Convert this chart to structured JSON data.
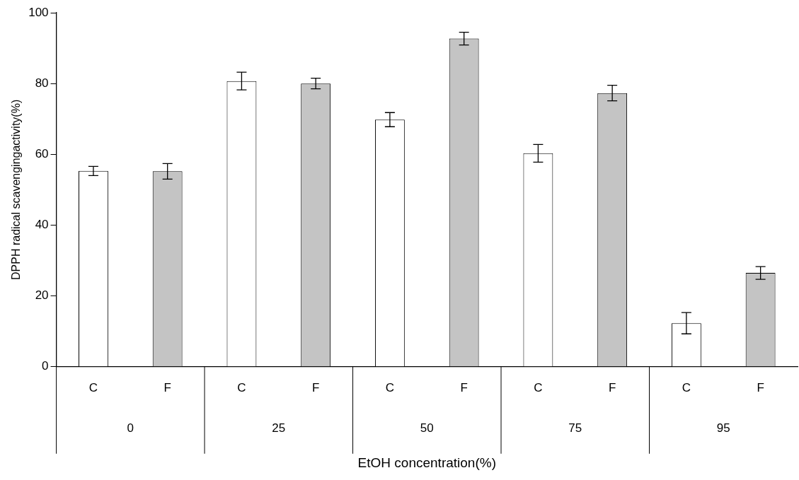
{
  "chart_data": {
    "type": "bar",
    "xlabel": "EtOH concentration(%)",
    "ylabel": "DPPH radical scavengingactivity(%)",
    "categories": [
      "C",
      "F",
      "C",
      "F",
      "C",
      "F",
      "C",
      "F",
      "C",
      "F"
    ],
    "values": [
      55.3,
      55.2,
      80.7,
      80.0,
      69.8,
      92.7,
      60.3,
      77.3,
      12.3,
      26.5
    ],
    "errors": [
      1.3,
      2.2,
      2.5,
      1.5,
      2.0,
      1.8,
      2.5,
      2.2,
      3.0,
      1.8
    ],
    "colors": [
      "#ffffff",
      "#c4c4c4",
      "#ffffff",
      "#c4c4c4",
      "#ffffff",
      "#c4c4c4",
      "#ffffff",
      "#c4c4c4",
      "#ffffff",
      "#c4c4c4"
    ],
    "annotations": [
      "0",
      "25",
      "50",
      "75",
      "95"
    ],
    "ylim": [
      0,
      100
    ],
    "yticks": [
      0,
      20,
      40,
      60,
      80,
      100
    ],
    "grid": false,
    "legend": false
  }
}
